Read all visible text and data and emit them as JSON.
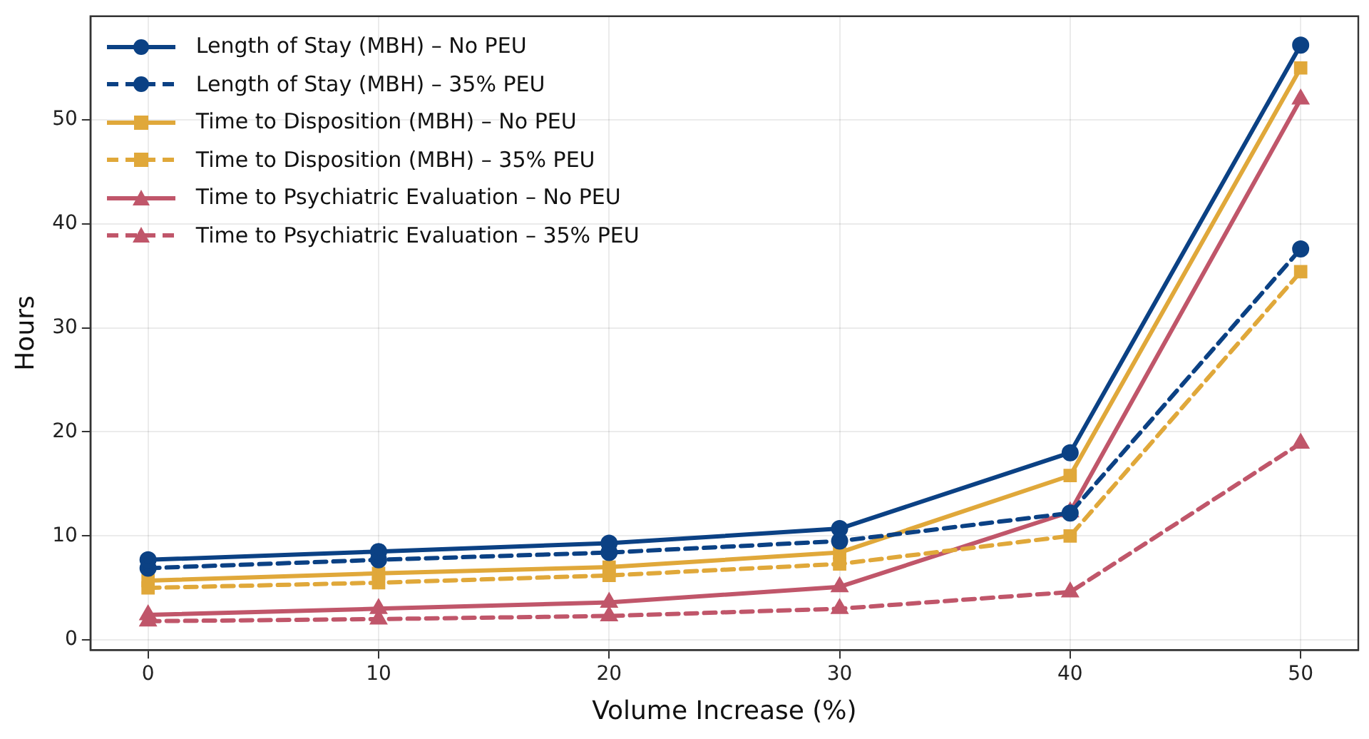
{
  "chart_data": {
    "type": "line",
    "xlabel": "Volume Increase (%)",
    "ylabel": "Hours",
    "x": [
      0,
      10,
      20,
      30,
      40,
      50
    ],
    "xlim": [
      -2.5,
      52.5
    ],
    "xticks": [
      0,
      10,
      20,
      30,
      40,
      50
    ],
    "ylim": [
      -0.97,
      59.97
    ],
    "yticks": [
      0,
      10,
      20,
      30,
      40,
      50
    ],
    "grid": true,
    "legend": "top left",
    "series": [
      {
        "name": "Length of Stay (MBH) – No PEU",
        "color": "#0b4184",
        "marker": "circle",
        "line_style": "solid",
        "values": [
          7.7,
          8.5,
          9.3,
          10.7,
          18.0,
          57.2
        ]
      },
      {
        "name": "Length of Stay (MBH) – 35% PEU",
        "color": "#0b4184",
        "marker": "circle",
        "line_style": "dashed",
        "values": [
          6.9,
          7.7,
          8.4,
          9.5,
          12.2,
          37.6
        ]
      },
      {
        "name": "Time to Disposition (MBH) – No PEU",
        "color": "#e0a83a",
        "marker": "square",
        "line_style": "solid",
        "values": [
          5.7,
          6.4,
          7.0,
          8.4,
          15.8,
          55.0
        ]
      },
      {
        "name": "Time to Disposition (MBH) – 35% PEU",
        "color": "#e0a83a",
        "marker": "square",
        "line_style": "dashed",
        "values": [
          5.0,
          5.5,
          6.2,
          7.3,
          10.0,
          35.4
        ]
      },
      {
        "name": "Time to Psychiatric Evaluation – No PEU",
        "color": "#c0566a",
        "marker": "triangle",
        "line_style": "solid",
        "values": [
          2.4,
          3.0,
          3.6,
          5.1,
          12.3,
          52.0
        ]
      },
      {
        "name": "Time to Psychiatric Evaluation – 35% PEU",
        "color": "#c0566a",
        "marker": "triangle",
        "line_style": "dashed",
        "values": [
          1.8,
          2.0,
          2.3,
          3.0,
          4.6,
          18.9
        ]
      }
    ]
  }
}
